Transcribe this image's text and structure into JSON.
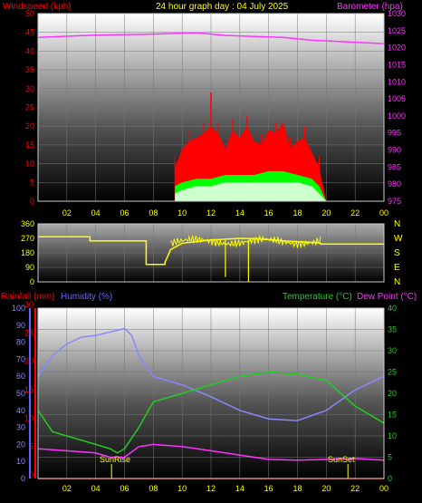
{
  "header": {
    "title": "24 hour graph day : 04 July 2025",
    "left_label": "Windspeed (kph)",
    "right_label": "Barometer (hpa)"
  },
  "bottom_header": {
    "rain": "Rainfall (mm)",
    "humidity": "Humidity (%)",
    "temperature": "Temperature (°C)",
    "dewpoint": "Dew Point (°C)"
  },
  "labels": {
    "sunrise": "SunRise",
    "sunset": "SunSet"
  },
  "compass": [
    "N",
    "W",
    "S",
    "E",
    "N"
  ],
  "x_ticks": [
    "02",
    "04",
    "06",
    "08",
    "10",
    "12",
    "14",
    "16",
    "18",
    "20",
    "22",
    "00"
  ],
  "colors": {
    "wind_avg": "#00ff00",
    "wind_gust": "#ff0000",
    "wind_low": "#ccffcc",
    "barometer": "#ff33ff",
    "direction": "#ffff00",
    "temperature": "#22cc22",
    "humidity": "#8888ff",
    "dewpoint": "#ff33ff",
    "rain": "#ff0000"
  },
  "chart_data": [
    {
      "type": "line",
      "name": "wind-barometer",
      "xlim": [
        0,
        24
      ],
      "yleft_ticks": [
        "0",
        "5",
        "10",
        "15",
        "20",
        "25",
        "30",
        "35",
        "40",
        "45",
        "50"
      ],
      "yright_ticks": [
        "975",
        "980",
        "985",
        "990",
        "995",
        "1000",
        "1005",
        "1010",
        "1015",
        "1020",
        "1025",
        "1030"
      ],
      "ylim_left": [
        0,
        50
      ],
      "ylim_right": [
        975,
        1030
      ],
      "barometer": {
        "x": [
          0,
          4,
          8,
          11,
          13,
          15,
          17,
          19,
          21,
          24
        ],
        "y": [
          1023,
          1023.7,
          1024,
          1024.4,
          1023.6,
          1023.3,
          1023,
          1022.2,
          1021.8,
          1021.2
        ]
      },
      "gust": {
        "x": [
          9.5,
          10,
          10.5,
          11,
          11.5,
          12,
          12.5,
          13,
          13.5,
          14,
          14.5,
          15,
          15.5,
          16,
          16.5,
          17,
          17.5,
          18,
          18.5,
          19,
          19.5,
          20
        ],
        "y": [
          9,
          14,
          16,
          17,
          18,
          20,
          18,
          14,
          19,
          17,
          20,
          16,
          15,
          19,
          18,
          21,
          14,
          16,
          17,
          13,
          9,
          0
        ]
      },
      "gust_peak": {
        "x": 12,
        "y": 29
      },
      "average": {
        "x": [
          9.5,
          10,
          11,
          12,
          13,
          14,
          15,
          16,
          17,
          18,
          19,
          19.5,
          20
        ],
        "y": [
          4,
          5,
          6,
          6,
          7,
          7,
          7,
          8,
          8,
          7,
          6,
          4,
          0
        ]
      },
      "low": {
        "x": [
          9.5,
          10,
          11,
          12,
          13,
          14,
          15,
          16,
          17,
          18,
          19,
          19.5,
          20
        ],
        "y": [
          2,
          3,
          4,
          4,
          5,
          5,
          5,
          5,
          5,
          5,
          4,
          2,
          0
        ]
      }
    },
    {
      "type": "line",
      "name": "wind-direction",
      "xlim": [
        0,
        24
      ],
      "ylim": [
        0,
        360
      ],
      "y_ticks": [
        "0",
        "90",
        "180",
        "270",
        "360"
      ],
      "direction": {
        "x": [
          0,
          3.6,
          3.6,
          7.5,
          7.5,
          8.8,
          8.8,
          9.2,
          10,
          11,
          12,
          13,
          14,
          15,
          16,
          17,
          18,
          19,
          19.6,
          19.6,
          24
        ],
        "y": [
          280,
          280,
          255,
          255,
          108,
          108,
          120,
          200,
          240,
          250,
          260,
          265,
          270,
          268,
          262,
          255,
          250,
          245,
          240,
          235,
          235
        ]
      },
      "spikes": [
        {
          "x": 13,
          "y": 30
        },
        {
          "x": 14.6,
          "y": 0
        }
      ]
    },
    {
      "type": "line",
      "name": "temp-humidity",
      "xlim": [
        0,
        24
      ],
      "y_rain_ticks": [
        "0",
        "5",
        "10",
        "15",
        "20",
        "25",
        "30"
      ],
      "y_hum_ticks": [
        "0",
        "10",
        "20",
        "30",
        "40",
        "50",
        "60",
        "70",
        "80",
        "90",
        "100"
      ],
      "y_temp_ticks": [
        "0",
        "5",
        "10",
        "15",
        "20",
        "25",
        "30",
        "35",
        "40"
      ],
      "ylim_rain": [
        0,
        30
      ],
      "ylim_humidity": [
        0,
        100
      ],
      "ylim_temp": [
        0,
        40
      ],
      "humidity": {
        "x": [
          0,
          1,
          2,
          3,
          4,
          5,
          6,
          6.5,
          7,
          8,
          10,
          12,
          14,
          16,
          18,
          20,
          22,
          24
        ],
        "y": [
          60,
          72,
          79,
          83,
          84,
          86,
          88,
          84,
          72,
          60,
          55,
          48,
          40,
          35,
          34,
          40,
          52,
          60
        ]
      },
      "temperature": {
        "x": [
          0,
          1,
          2,
          3,
          4,
          5,
          5.5,
          6,
          7,
          8,
          10,
          12,
          14,
          16,
          18,
          20,
          22,
          24
        ],
        "y": [
          16,
          11,
          10,
          9,
          8,
          7,
          6,
          7,
          12,
          18,
          20,
          22,
          24,
          25,
          24.5,
          23,
          17,
          13
        ]
      },
      "dewpoint": {
        "x": [
          0,
          2,
          4,
          5,
          6,
          7,
          8,
          10,
          12,
          14,
          16,
          18,
          20,
          22,
          24
        ],
        "y": [
          7,
          6.5,
          6,
          5,
          5,
          7.5,
          8,
          7.5,
          6.5,
          5.5,
          4.5,
          4.3,
          4.5,
          4.7,
          4.3
        ]
      },
      "rain": {
        "x": [
          0,
          24
        ],
        "y": [
          0,
          0
        ]
      },
      "sunrise_x": 5.1,
      "sunset_x": 21.5
    }
  ]
}
